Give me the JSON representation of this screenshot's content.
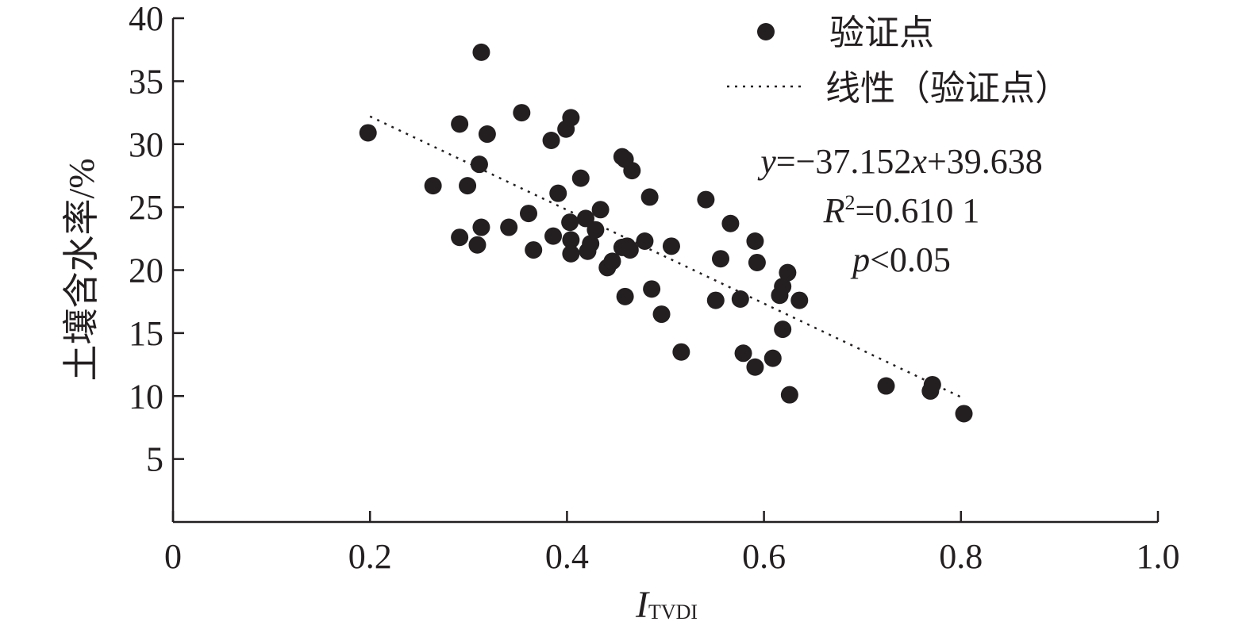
{
  "chart_data": {
    "type": "scatter",
    "xlabel_main": "I",
    "xlabel_sub": "TVDI",
    "ylabel": "土壤含水率/%",
    "xlim": [
      0,
      1.0
    ],
    "ylim": [
      0,
      40
    ],
    "x_ticks": [
      "0",
      "0.2",
      "0.4",
      "0.6",
      "0.8",
      "1.0"
    ],
    "x_tick_values": [
      0,
      0.2,
      0.4,
      0.6,
      0.8,
      1.0
    ],
    "y_ticks": [
      "5",
      "10",
      "15",
      "20",
      "25",
      "30",
      "35",
      "40"
    ],
    "y_tick_values": [
      5,
      10,
      15,
      20,
      25,
      30,
      35,
      40
    ],
    "grid": false,
    "legend_position": "top-right",
    "series": [
      {
        "name": "验证点",
        "points": [
          [
            0.198,
            30.9
          ],
          [
            0.264,
            26.7
          ],
          [
            0.291,
            31.6
          ],
          [
            0.291,
            22.6
          ],
          [
            0.299,
            26.7
          ],
          [
            0.311,
            28.4
          ],
          [
            0.313,
            37.3
          ],
          [
            0.313,
            23.4
          ],
          [
            0.309,
            22.0
          ],
          [
            0.319,
            30.8
          ],
          [
            0.341,
            23.4
          ],
          [
            0.354,
            32.5
          ],
          [
            0.361,
            24.5
          ],
          [
            0.366,
            21.6
          ],
          [
            0.384,
            30.3
          ],
          [
            0.386,
            22.7
          ],
          [
            0.391,
            26.1
          ],
          [
            0.399,
            31.2
          ],
          [
            0.404,
            32.1
          ],
          [
            0.403,
            23.8
          ],
          [
            0.404,
            22.4
          ],
          [
            0.404,
            21.3
          ],
          [
            0.414,
            27.3
          ],
          [
            0.419,
            24.1
          ],
          [
            0.421,
            21.5
          ],
          [
            0.424,
            22.1
          ],
          [
            0.429,
            23.2
          ],
          [
            0.434,
            24.8
          ],
          [
            0.441,
            20.2
          ],
          [
            0.446,
            20.7
          ],
          [
            0.456,
            29.0
          ],
          [
            0.459,
            28.8
          ],
          [
            0.456,
            21.8
          ],
          [
            0.459,
            17.9
          ],
          [
            0.461,
            21.9
          ],
          [
            0.464,
            21.6
          ],
          [
            0.466,
            27.9
          ],
          [
            0.479,
            22.3
          ],
          [
            0.484,
            25.8
          ],
          [
            0.486,
            18.5
          ],
          [
            0.496,
            16.5
          ],
          [
            0.506,
            21.9
          ],
          [
            0.516,
            13.5
          ],
          [
            0.541,
            25.6
          ],
          [
            0.551,
            17.6
          ],
          [
            0.556,
            20.9
          ],
          [
            0.566,
            23.7
          ],
          [
            0.576,
            17.7
          ],
          [
            0.579,
            13.4
          ],
          [
            0.591,
            22.3
          ],
          [
            0.593,
            20.6
          ],
          [
            0.591,
            12.3
          ],
          [
            0.609,
            13.0
          ],
          [
            0.616,
            18.0
          ],
          [
            0.619,
            18.7
          ],
          [
            0.619,
            15.3
          ],
          [
            0.624,
            19.8
          ],
          [
            0.626,
            10.1
          ],
          [
            0.636,
            17.6
          ],
          [
            0.724,
            10.8
          ],
          [
            0.769,
            10.4
          ],
          [
            0.771,
            10.9
          ],
          [
            0.803,
            8.6
          ]
        ]
      }
    ],
    "trendline": {
      "name": "线性（验证点）",
      "slope": -37.152,
      "intercept": 39.638,
      "x_range": [
        0.2,
        0.8
      ]
    },
    "annotations": {
      "equation_y": "y",
      "equation_rest": "=−37.152",
      "equation_x": "x",
      "equation_tail": "+39.638",
      "r2_label": "R",
      "r2_sup": "2",
      "r2_value": "=0.610 1",
      "p_label": "p",
      "p_value": "<0.05"
    }
  }
}
